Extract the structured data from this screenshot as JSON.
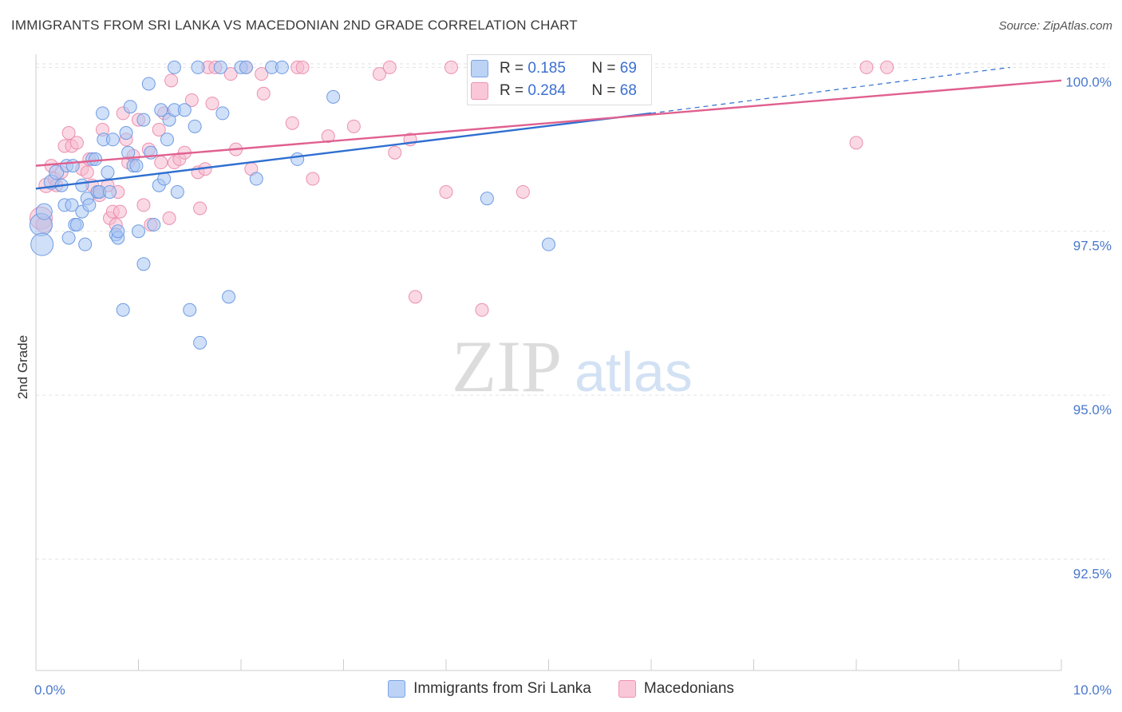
{
  "header": {
    "title": "IMMIGRANTS FROM SRI LANKA VS MACEDONIAN 2ND GRADE CORRELATION CHART",
    "source": "Source: ZipAtlas.com"
  },
  "watermark": {
    "zip": "ZIP",
    "atlas": "atlas"
  },
  "stats": {
    "r_label": "R =",
    "n_label": "N =",
    "rows": [
      {
        "r": "0.185",
        "n": "69"
      },
      {
        "r": "0.284",
        "n": "68"
      }
    ]
  },
  "legend": {
    "items": [
      {
        "label": "Immigrants from Sri Lanka"
      },
      {
        "label": "Macedonians"
      }
    ]
  },
  "colors": {
    "blue_fill": "#a9c6f2",
    "blue_stroke": "#6f9be3",
    "blue_line": "#2f6fd0",
    "pink_fill": "#f6b9cd",
    "pink_stroke": "#ec8fb0",
    "pink_line": "#e0608f",
    "tick_label": "#4a78cc",
    "grid": "#e3e3e3"
  },
  "chart_data": {
    "type": "scatter",
    "title": "IMMIGRANTS FROM SRI LANKA VS MACEDONIAN 2ND GRADE CORRELATION CHART",
    "xlabel": "",
    "ylabel": "2nd Grade",
    "xlim": [
      0,
      10
    ],
    "ylim": [
      90.8,
      100.2
    ],
    "x_tick_labels": [
      "0.0%",
      "10.0%"
    ],
    "y_ticks": [
      {
        "value": 92.5,
        "label": "92.5%"
      },
      {
        "value": 95.0,
        "label": "95.0%"
      },
      {
        "value": 97.5,
        "label": "97.5%"
      },
      {
        "value": 100.0,
        "label": "100.0%"
      }
    ],
    "series": [
      {
        "name": "Immigrants from Sri Lanka",
        "r": 0.185,
        "n": 69,
        "trend": {
          "x0": 0.0,
          "y0": 98.15,
          "x1": 6.0,
          "y1": 99.3,
          "dash_x1": 9.5,
          "dash_y1": 100.0
        },
        "points": [
          {
            "x": 0.05,
            "y": 97.6,
            "s": 14
          },
          {
            "x": 0.06,
            "y": 97.3,
            "s": 14
          },
          {
            "x": 0.08,
            "y": 97.8,
            "s": 10
          },
          {
            "x": 0.15,
            "y": 98.25,
            "s": 9
          },
          {
            "x": 0.2,
            "y": 98.4,
            "s": 9
          },
          {
            "x": 0.25,
            "y": 98.2,
            "s": 8
          },
          {
            "x": 0.28,
            "y": 97.9,
            "s": 8
          },
          {
            "x": 0.3,
            "y": 98.5,
            "s": 8
          },
          {
            "x": 0.32,
            "y": 97.4,
            "s": 8
          },
          {
            "x": 0.35,
            "y": 97.9,
            "s": 8
          },
          {
            "x": 0.36,
            "y": 98.5,
            "s": 8
          },
          {
            "x": 0.38,
            "y": 97.6,
            "s": 8
          },
          {
            "x": 0.4,
            "y": 97.6,
            "s": 8
          },
          {
            "x": 0.45,
            "y": 98.2,
            "s": 8
          },
          {
            "x": 0.45,
            "y": 97.8,
            "s": 8
          },
          {
            "x": 0.48,
            "y": 97.3,
            "s": 8
          },
          {
            "x": 0.5,
            "y": 98.0,
            "s": 8
          },
          {
            "x": 0.52,
            "y": 97.9,
            "s": 8
          },
          {
            "x": 0.55,
            "y": 98.6,
            "s": 8
          },
          {
            "x": 0.58,
            "y": 98.6,
            "s": 8
          },
          {
            "x": 0.6,
            "y": 98.1,
            "s": 8
          },
          {
            "x": 0.62,
            "y": 98.1,
            "s": 8
          },
          {
            "x": 0.65,
            "y": 99.3,
            "s": 8
          },
          {
            "x": 0.66,
            "y": 98.9,
            "s": 8
          },
          {
            "x": 0.7,
            "y": 98.4,
            "s": 8
          },
          {
            "x": 0.72,
            "y": 98.1,
            "s": 8
          },
          {
            "x": 0.75,
            "y": 98.9,
            "s": 8
          },
          {
            "x": 0.78,
            "y": 97.45,
            "s": 8
          },
          {
            "x": 0.8,
            "y": 97.4,
            "s": 8
          },
          {
            "x": 0.8,
            "y": 97.5,
            "s": 8
          },
          {
            "x": 0.85,
            "y": 96.3,
            "s": 8
          },
          {
            "x": 0.88,
            "y": 99.0,
            "s": 8
          },
          {
            "x": 0.9,
            "y": 98.7,
            "s": 8
          },
          {
            "x": 0.92,
            "y": 99.4,
            "s": 8
          },
          {
            "x": 0.95,
            "y": 98.5,
            "s": 8
          },
          {
            "x": 0.98,
            "y": 98.5,
            "s": 8
          },
          {
            "x": 1.0,
            "y": 97.5,
            "s": 8
          },
          {
            "x": 1.05,
            "y": 99.2,
            "s": 8
          },
          {
            "x": 1.05,
            "y": 97.0,
            "s": 8
          },
          {
            "x": 1.1,
            "y": 99.75,
            "s": 8
          },
          {
            "x": 1.12,
            "y": 98.7,
            "s": 8
          },
          {
            "x": 1.15,
            "y": 97.6,
            "s": 8
          },
          {
            "x": 1.2,
            "y": 98.2,
            "s": 8
          },
          {
            "x": 1.22,
            "y": 99.35,
            "s": 8
          },
          {
            "x": 1.25,
            "y": 98.3,
            "s": 8
          },
          {
            "x": 1.28,
            "y": 98.9,
            "s": 8
          },
          {
            "x": 1.3,
            "y": 99.2,
            "s": 8
          },
          {
            "x": 1.35,
            "y": 99.35,
            "s": 8
          },
          {
            "x": 1.35,
            "y": 100.0,
            "s": 8
          },
          {
            "x": 1.38,
            "y": 98.1,
            "s": 8
          },
          {
            "x": 1.45,
            "y": 99.35,
            "s": 8
          },
          {
            "x": 1.5,
            "y": 96.3,
            "s": 8
          },
          {
            "x": 1.55,
            "y": 99.1,
            "s": 8
          },
          {
            "x": 1.58,
            "y": 100.0,
            "s": 8
          },
          {
            "x": 1.6,
            "y": 95.8,
            "s": 8
          },
          {
            "x": 1.8,
            "y": 100.0,
            "s": 8
          },
          {
            "x": 1.82,
            "y": 99.3,
            "s": 8
          },
          {
            "x": 1.88,
            "y": 96.5,
            "s": 8
          },
          {
            "x": 2.0,
            "y": 100.0,
            "s": 8
          },
          {
            "x": 2.05,
            "y": 100.0,
            "s": 8
          },
          {
            "x": 2.15,
            "y": 98.3,
            "s": 8
          },
          {
            "x": 2.3,
            "y": 100.0,
            "s": 8
          },
          {
            "x": 2.4,
            "y": 100.0,
            "s": 8
          },
          {
            "x": 2.55,
            "y": 98.6,
            "s": 8
          },
          {
            "x": 2.9,
            "y": 99.55,
            "s": 8
          },
          {
            "x": 4.4,
            "y": 98.0,
            "s": 8
          },
          {
            "x": 5.0,
            "y": 97.3,
            "s": 8
          }
        ]
      },
      {
        "name": "Macedonians",
        "r": 0.284,
        "n": 68,
        "trend": {
          "x0": 0.0,
          "y0": 98.5,
          "x1": 10.0,
          "y1": 99.8
        },
        "points": [
          {
            "x": 0.05,
            "y": 97.7,
            "s": 14
          },
          {
            "x": 0.08,
            "y": 97.6,
            "s": 10
          },
          {
            "x": 0.1,
            "y": 98.2,
            "s": 9
          },
          {
            "x": 0.15,
            "y": 98.5,
            "s": 8
          },
          {
            "x": 0.18,
            "y": 98.3,
            "s": 8
          },
          {
            "x": 0.2,
            "y": 98.2,
            "s": 8
          },
          {
            "x": 0.25,
            "y": 98.4,
            "s": 8
          },
          {
            "x": 0.28,
            "y": 98.8,
            "s": 8
          },
          {
            "x": 0.32,
            "y": 99.0,
            "s": 8
          },
          {
            "x": 0.35,
            "y": 98.8,
            "s": 8
          },
          {
            "x": 0.4,
            "y": 98.85,
            "s": 8
          },
          {
            "x": 0.45,
            "y": 98.45,
            "s": 8
          },
          {
            "x": 0.5,
            "y": 98.4,
            "s": 8
          },
          {
            "x": 0.52,
            "y": 98.6,
            "s": 8
          },
          {
            "x": 0.55,
            "y": 98.2,
            "s": 8
          },
          {
            "x": 0.6,
            "y": 98.1,
            "s": 8
          },
          {
            "x": 0.62,
            "y": 98.05,
            "s": 8
          },
          {
            "x": 0.65,
            "y": 99.05,
            "s": 8
          },
          {
            "x": 0.7,
            "y": 98.2,
            "s": 8
          },
          {
            "x": 0.72,
            "y": 97.7,
            "s": 8
          },
          {
            "x": 0.75,
            "y": 97.8,
            "s": 8
          },
          {
            "x": 0.78,
            "y": 97.6,
            "s": 8
          },
          {
            "x": 0.8,
            "y": 98.1,
            "s": 8
          },
          {
            "x": 0.82,
            "y": 97.8,
            "s": 8
          },
          {
            "x": 0.85,
            "y": 99.3,
            "s": 8
          },
          {
            "x": 0.88,
            "y": 98.9,
            "s": 8
          },
          {
            "x": 0.9,
            "y": 98.55,
            "s": 8
          },
          {
            "x": 0.95,
            "y": 98.65,
            "s": 8
          },
          {
            "x": 1.0,
            "y": 99.2,
            "s": 8
          },
          {
            "x": 1.05,
            "y": 97.9,
            "s": 8
          },
          {
            "x": 1.1,
            "y": 98.75,
            "s": 8
          },
          {
            "x": 1.12,
            "y": 97.6,
            "s": 8
          },
          {
            "x": 1.2,
            "y": 99.05,
            "s": 8
          },
          {
            "x": 1.22,
            "y": 98.55,
            "s": 8
          },
          {
            "x": 1.25,
            "y": 99.3,
            "s": 8
          },
          {
            "x": 1.3,
            "y": 97.7,
            "s": 8
          },
          {
            "x": 1.32,
            "y": 99.8,
            "s": 8
          },
          {
            "x": 1.35,
            "y": 98.55,
            "s": 8
          },
          {
            "x": 1.4,
            "y": 98.6,
            "s": 8
          },
          {
            "x": 1.45,
            "y": 98.7,
            "s": 8
          },
          {
            "x": 1.52,
            "y": 99.5,
            "s": 8
          },
          {
            "x": 1.58,
            "y": 98.4,
            "s": 8
          },
          {
            "x": 1.6,
            "y": 97.85,
            "s": 8
          },
          {
            "x": 1.65,
            "y": 98.45,
            "s": 8
          },
          {
            "x": 1.68,
            "y": 100.0,
            "s": 8
          },
          {
            "x": 1.72,
            "y": 99.45,
            "s": 8
          },
          {
            "x": 1.75,
            "y": 100.0,
            "s": 8
          },
          {
            "x": 1.9,
            "y": 99.9,
            "s": 8
          },
          {
            "x": 1.95,
            "y": 98.75,
            "s": 8
          },
          {
            "x": 2.05,
            "y": 100.0,
            "s": 8
          },
          {
            "x": 2.1,
            "y": 98.45,
            "s": 8
          },
          {
            "x": 2.2,
            "y": 99.9,
            "s": 8
          },
          {
            "x": 2.22,
            "y": 99.6,
            "s": 8
          },
          {
            "x": 2.5,
            "y": 99.15,
            "s": 8
          },
          {
            "x": 2.55,
            "y": 100.0,
            "s": 8
          },
          {
            "x": 2.6,
            "y": 100.0,
            "s": 8
          },
          {
            "x": 2.7,
            "y": 98.3,
            "s": 8
          },
          {
            "x": 2.85,
            "y": 98.95,
            "s": 8
          },
          {
            "x": 3.1,
            "y": 99.1,
            "s": 8
          },
          {
            "x": 3.35,
            "y": 99.9,
            "s": 8
          },
          {
            "x": 3.45,
            "y": 100.0,
            "s": 8
          },
          {
            "x": 3.5,
            "y": 98.7,
            "s": 8
          },
          {
            "x": 3.65,
            "y": 98.9,
            "s": 8
          },
          {
            "x": 3.7,
            "y": 96.5,
            "s": 8
          },
          {
            "x": 4.0,
            "y": 98.1,
            "s": 8
          },
          {
            "x": 4.05,
            "y": 100.0,
            "s": 8
          },
          {
            "x": 4.35,
            "y": 96.3,
            "s": 8
          },
          {
            "x": 4.75,
            "y": 98.1,
            "s": 8
          },
          {
            "x": 8.0,
            "y": 98.85,
            "s": 8
          },
          {
            "x": 8.1,
            "y": 100.0,
            "s": 8
          },
          {
            "x": 8.3,
            "y": 100.0,
            "s": 8
          }
        ]
      }
    ]
  }
}
